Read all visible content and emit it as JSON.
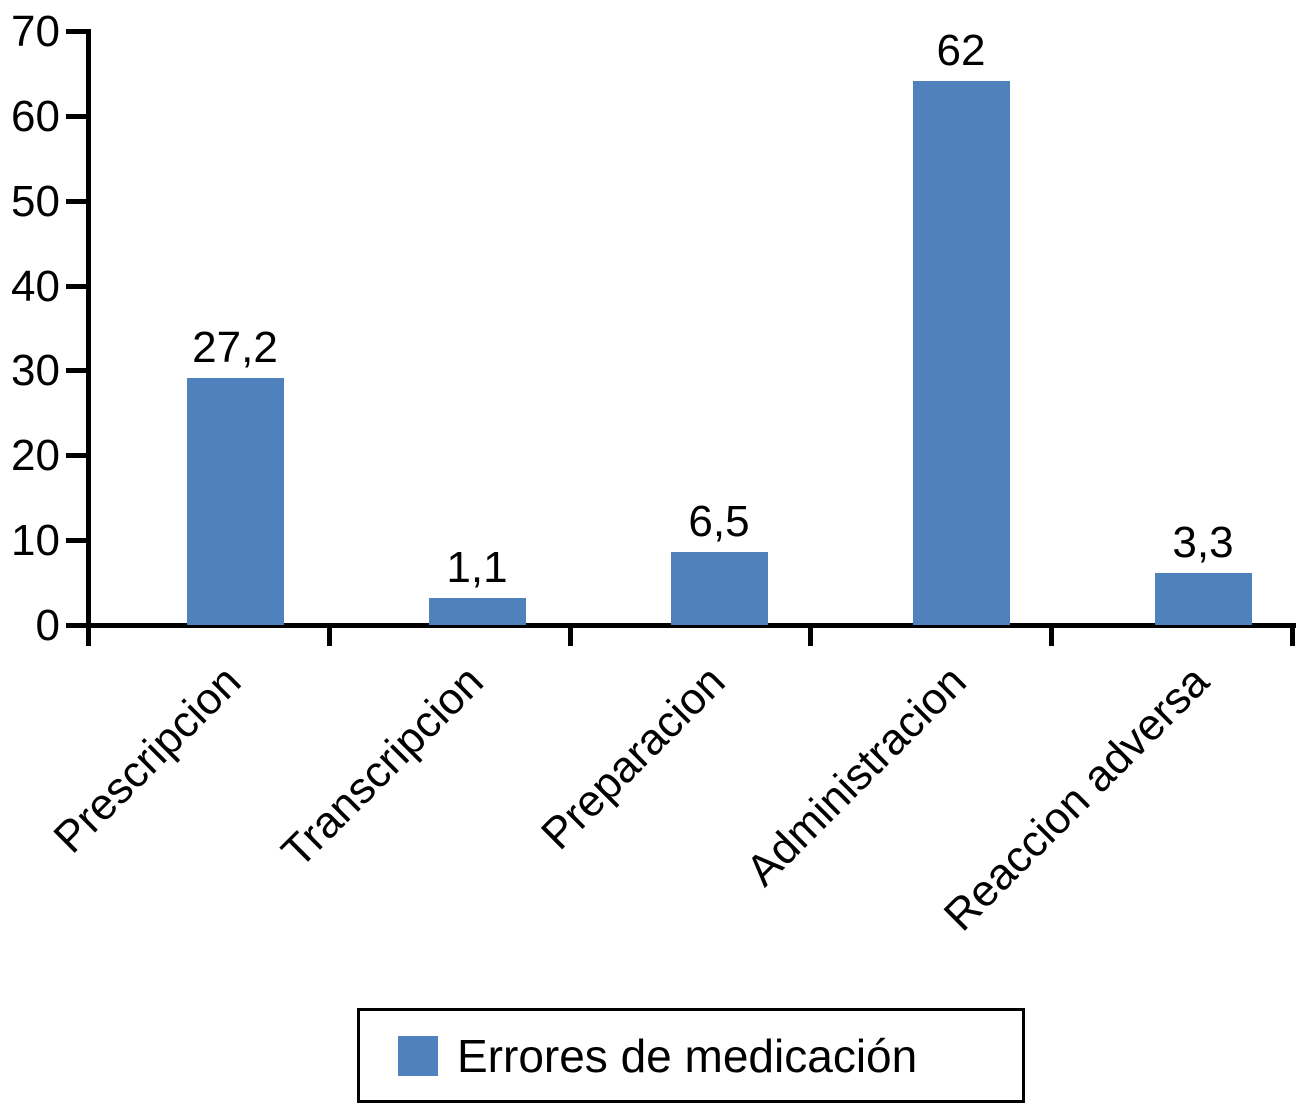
{
  "chart_data": {
    "type": "bar",
    "title": "",
    "xlabel": "",
    "ylabel": "",
    "categories": [
      "Prescripcion",
      "Transcripcion",
      "Preparacion",
      "Administracion",
      "Reaccion adversa"
    ],
    "values": [
      27.2,
      1.1,
      6.5,
      62,
      3.3
    ],
    "value_labels": [
      "27,2",
      "1,1",
      "6,5",
      "62",
      "3,3"
    ],
    "decimal_separator": ",",
    "series": [
      {
        "name": "Errores de medicación",
        "values": [
          27.2,
          1.1,
          6.5,
          62,
          3.3
        ]
      }
    ],
    "legend": {
      "label": "Errores de medicación",
      "position": "bottom",
      "swatch_color": "#4f81bd",
      "border_color": "#000000"
    },
    "bar_color": "#4f81bd",
    "axis_color": "#000000",
    "ylim": [
      0,
      70
    ],
    "yticks": [
      0,
      10,
      20,
      30,
      40,
      50,
      60,
      70
    ],
    "grid": false,
    "x_tick_label_rotation_deg": -45,
    "bar_rendered_units": [
      29.1,
      3.2,
      8.6,
      64.1,
      6.1
    ]
  }
}
